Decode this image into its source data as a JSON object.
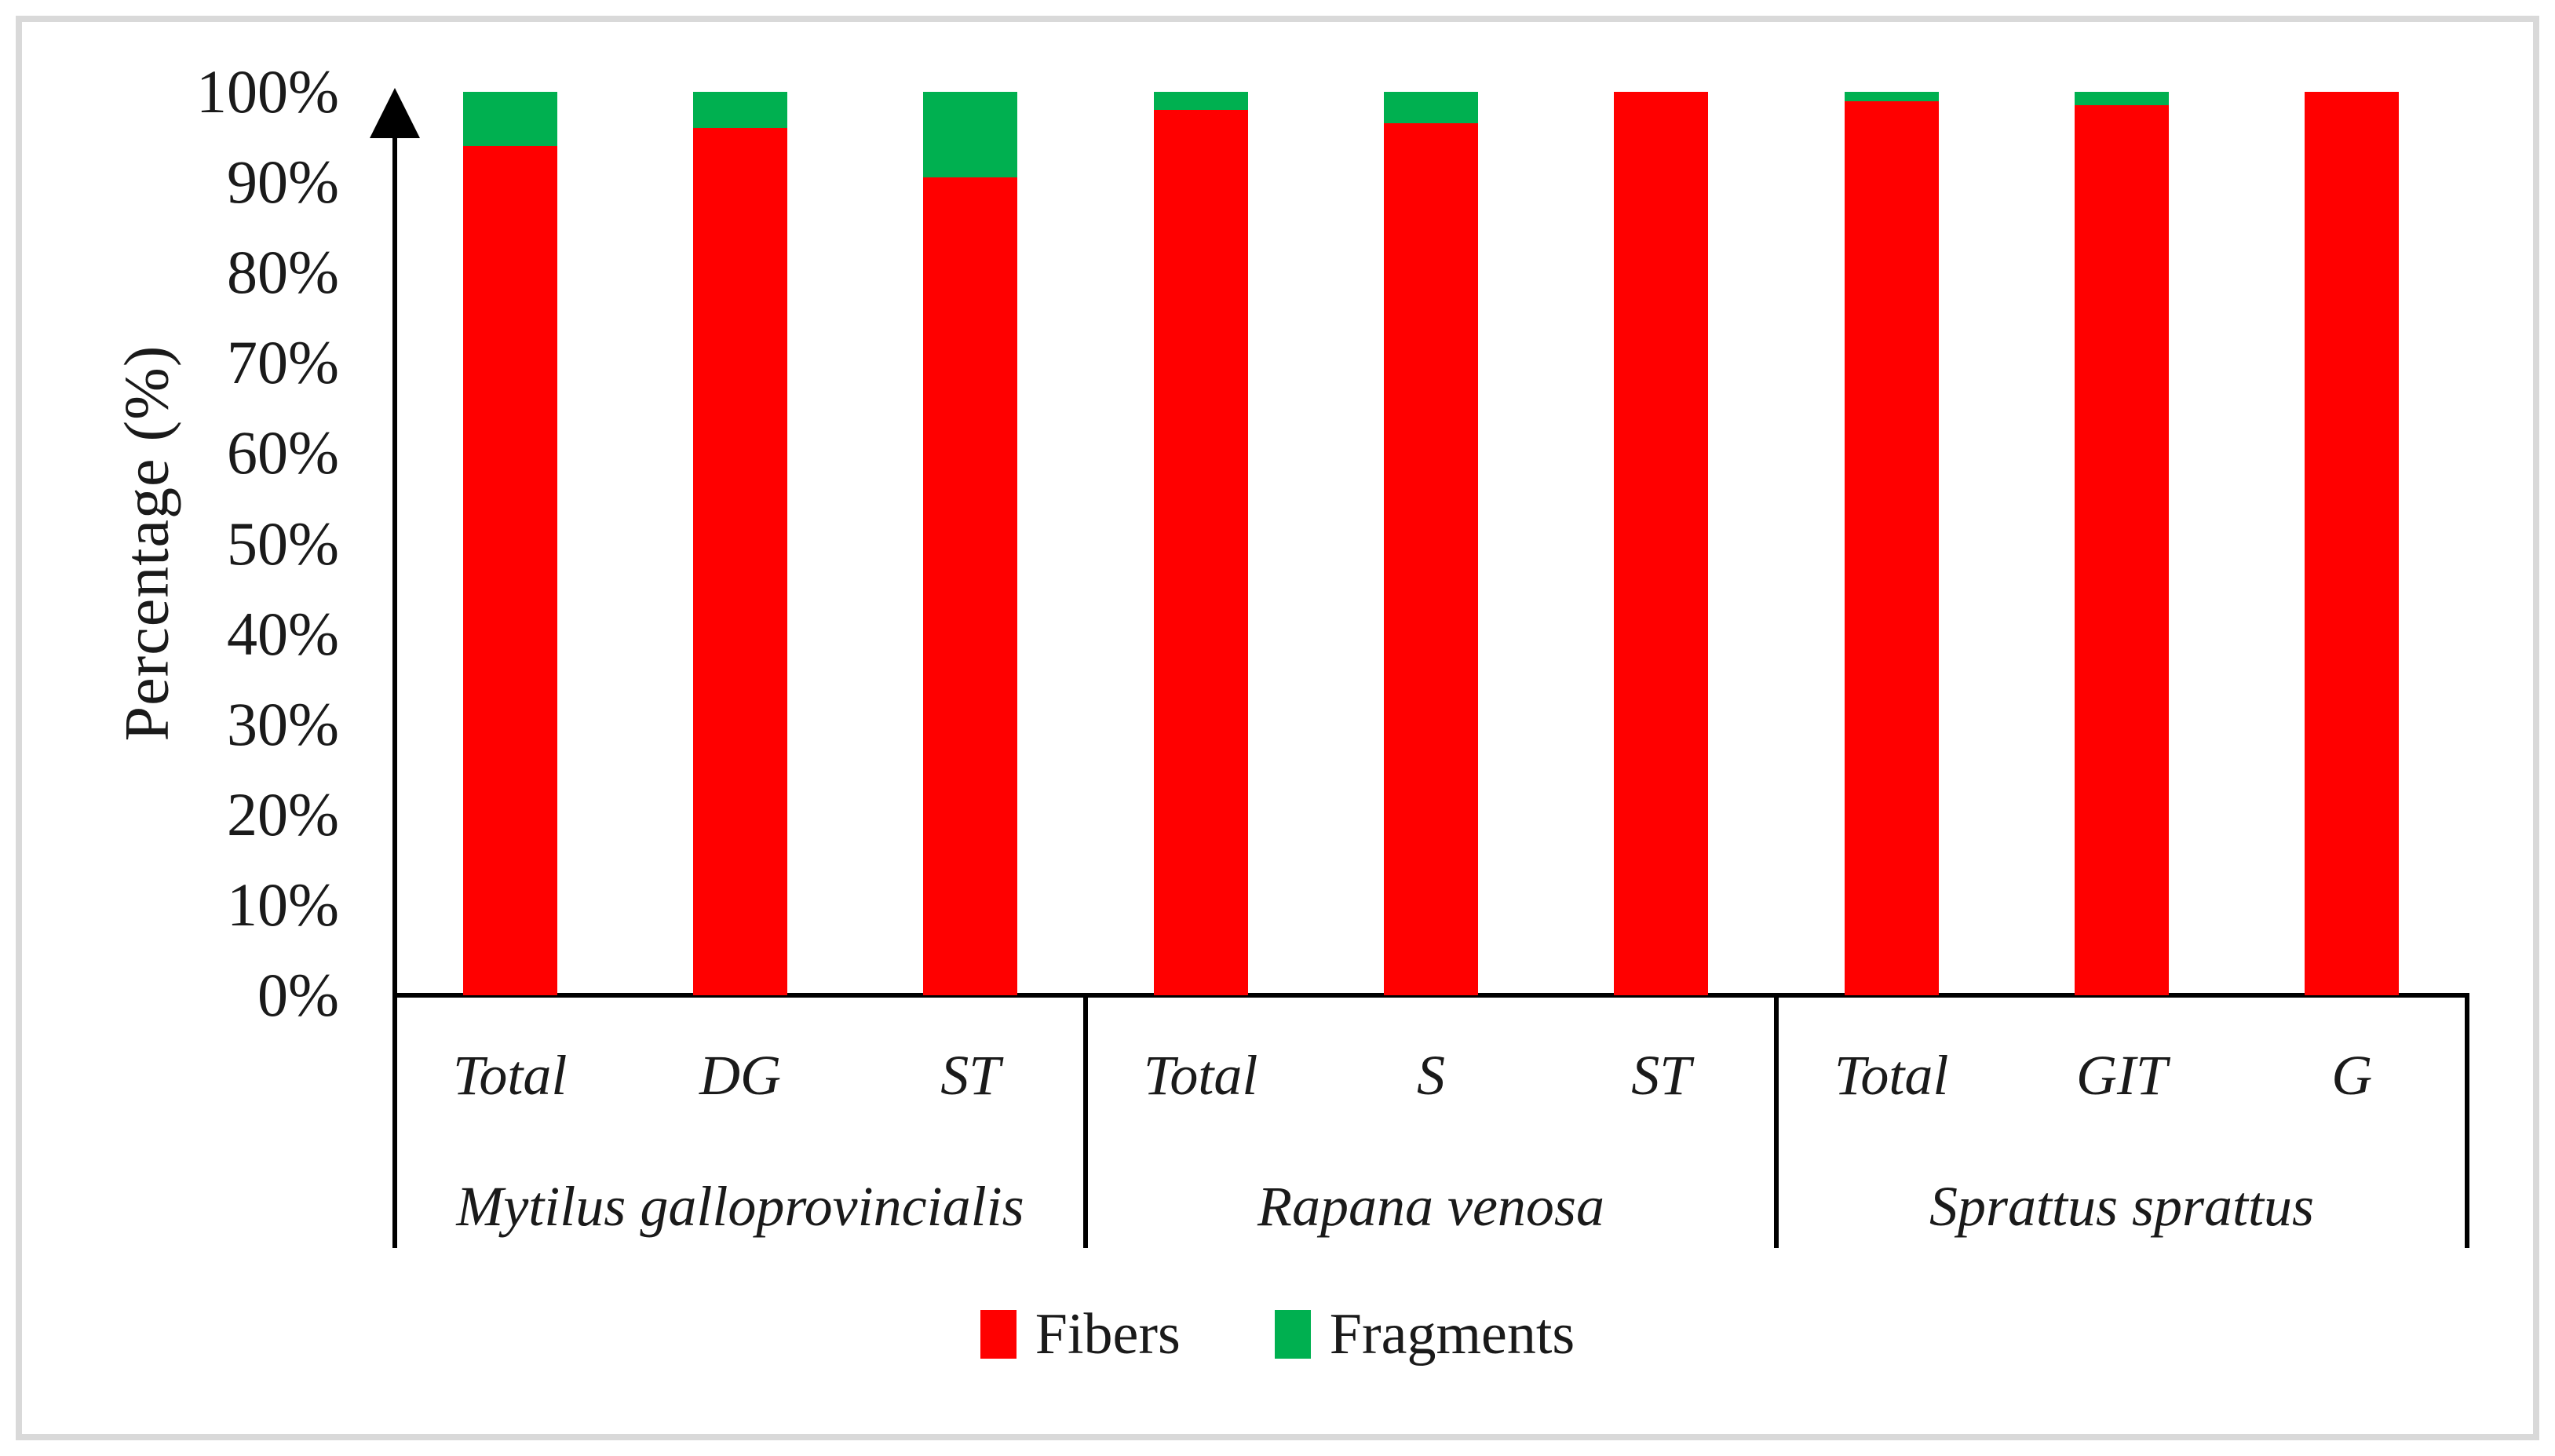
{
  "chart_data": {
    "type": "bar",
    "stacked": true,
    "orientation": "vertical",
    "title": "",
    "xlabel": "",
    "ylabel": "Percentage (%)",
    "ylim": [
      0,
      100
    ],
    "y_ticks": [
      "0%",
      "10%",
      "20%",
      "30%",
      "40%",
      "50%",
      "60%",
      "70%",
      "80%",
      "90%",
      "100%"
    ],
    "grid": false,
    "legend_position": "bottom",
    "categories": [
      "Total",
      "DG",
      "ST",
      "Total",
      "S",
      "ST",
      "Total",
      "GIT",
      "G"
    ],
    "groups": [
      {
        "species": "Mytilus galloprovincialis",
        "tissues": [
          "Total",
          "DG",
          "ST"
        ]
      },
      {
        "species": "Rapana venosa",
        "tissues": [
          "Total",
          "S",
          "ST"
        ]
      },
      {
        "species": "Sprattus sprattus",
        "tissues": [
          "Total",
          "GIT",
          "G"
        ]
      }
    ],
    "series": [
      {
        "name": "Fibers",
        "color": "#FF0000",
        "values": [
          94,
          96,
          90.5,
          98,
          96.5,
          100,
          99,
          98.5,
          100
        ]
      },
      {
        "name": "Fragments",
        "color": "#00B050",
        "values": [
          6,
          4,
          9.5,
          2,
          3.5,
          0,
          1,
          1.5,
          0
        ]
      }
    ],
    "colors": {
      "fibers": "#FF0000",
      "fragments": "#00B050"
    }
  },
  "figure": {
    "border_color": "#D9D9D9",
    "background": "#FFFFFF"
  }
}
